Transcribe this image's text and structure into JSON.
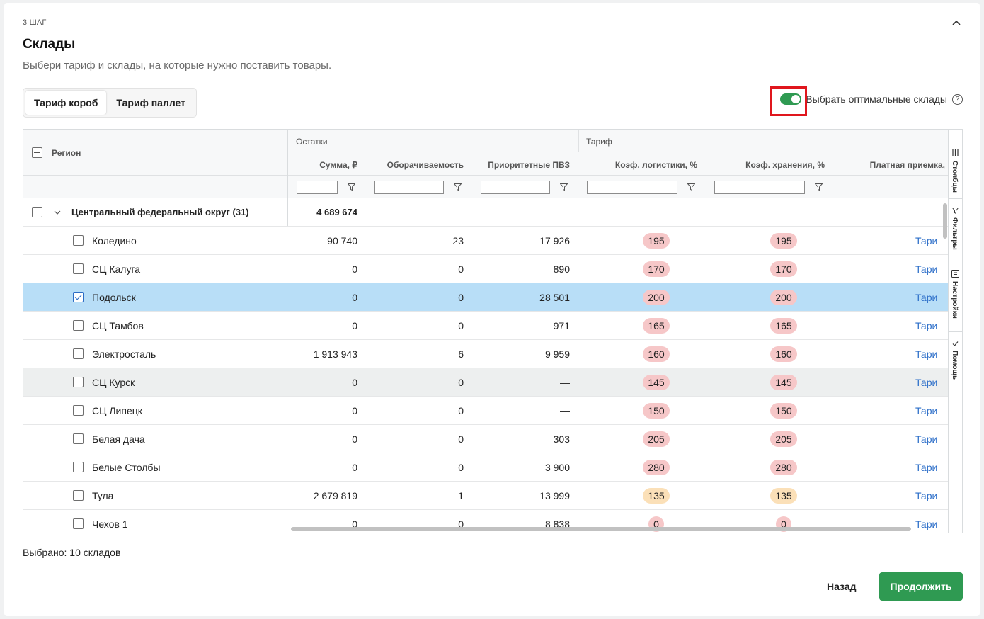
{
  "step_label": "3 ШАГ",
  "title": "Склады",
  "subtitle": "Выбери тариф и склады, на которые нужно поставить товары.",
  "tabs": [
    {
      "label": "Тариф короб",
      "active": true
    },
    {
      "label": "Тариф паллет",
      "active": false
    }
  ],
  "optimal": {
    "label": "Выбрать оптимальные склады",
    "enabled": true,
    "help": "?"
  },
  "table": {
    "region_header": "Регион",
    "group_headers": {
      "stock": "Остатки",
      "tariff": "Тариф"
    },
    "columns": {
      "sum": "Сумма, ₽",
      "turnover": "Оборачиваемость",
      "priority": "Приоритетные ПВЗ",
      "logistics": "Коэф. логистики, %",
      "storage": "Коэф. хранения, %",
      "paid": "Платная приемка,"
    },
    "group_row": {
      "label": "Центральный федеральный округ (31)",
      "sum": "4 689 674"
    },
    "rows": [
      {
        "name": "Коледино",
        "sum": "90 740",
        "turnover": "23",
        "priority": "17 926",
        "logistics": "195",
        "storage": "195",
        "paid": "Тари",
        "checked": false,
        "selected": false,
        "hover": false,
        "tone": "red"
      },
      {
        "name": "СЦ Калуга",
        "sum": "0",
        "turnover": "0",
        "priority": "890",
        "logistics": "170",
        "storage": "170",
        "paid": "Тари",
        "checked": false,
        "selected": false,
        "hover": false,
        "tone": "red"
      },
      {
        "name": "Подольск",
        "sum": "0",
        "turnover": "0",
        "priority": "28 501",
        "logistics": "200",
        "storage": "200",
        "paid": "Тари",
        "checked": true,
        "selected": true,
        "hover": false,
        "tone": "red"
      },
      {
        "name": "СЦ Тамбов",
        "sum": "0",
        "turnover": "0",
        "priority": "971",
        "logistics": "165",
        "storage": "165",
        "paid": "Тари",
        "checked": false,
        "selected": false,
        "hover": false,
        "tone": "red"
      },
      {
        "name": "Электросталь",
        "sum": "1 913 943",
        "turnover": "6",
        "priority": "9 959",
        "logistics": "160",
        "storage": "160",
        "paid": "Тари",
        "checked": false,
        "selected": false,
        "hover": false,
        "tone": "red"
      },
      {
        "name": "СЦ Курск",
        "sum": "0",
        "turnover": "0",
        "priority": "—",
        "logistics": "145",
        "storage": "145",
        "paid": "Тари",
        "checked": false,
        "selected": false,
        "hover": true,
        "tone": "red"
      },
      {
        "name": "СЦ Липецк",
        "sum": "0",
        "turnover": "0",
        "priority": "—",
        "logistics": "150",
        "storage": "150",
        "paid": "Тари",
        "checked": false,
        "selected": false,
        "hover": false,
        "tone": "red"
      },
      {
        "name": "Белая дача",
        "sum": "0",
        "turnover": "0",
        "priority": "303",
        "logistics": "205",
        "storage": "205",
        "paid": "Тари",
        "checked": false,
        "selected": false,
        "hover": false,
        "tone": "red"
      },
      {
        "name": "Белые Столбы",
        "sum": "0",
        "turnover": "0",
        "priority": "3 900",
        "logistics": "280",
        "storage": "280",
        "paid": "Тари",
        "checked": false,
        "selected": false,
        "hover": false,
        "tone": "red"
      },
      {
        "name": "Тула",
        "sum": "2 679 819",
        "turnover": "1",
        "priority": "13 999",
        "logistics": "135",
        "storage": "135",
        "paid": "Тари",
        "checked": false,
        "selected": false,
        "hover": false,
        "tone": "orange"
      },
      {
        "name": "Чехов 1",
        "sum": "0",
        "turnover": "0",
        "priority": "8 838",
        "logistics": "0",
        "storage": "0",
        "paid": "Тари",
        "checked": false,
        "selected": false,
        "hover": false,
        "tone": "red"
      }
    ]
  },
  "side_tabs": [
    "Столбцы",
    "Фильтры",
    "Настройки",
    "Помощь"
  ],
  "selected_text": "Выбрано: 10 складов",
  "buttons": {
    "back": "Назад",
    "continue": "Продолжить"
  },
  "colors": {
    "accent_green": "#2f9a52",
    "selected_row": "#b8def7",
    "hover_row": "#edefef",
    "link": "#2d6fc9",
    "highlight": "#e0161d"
  }
}
